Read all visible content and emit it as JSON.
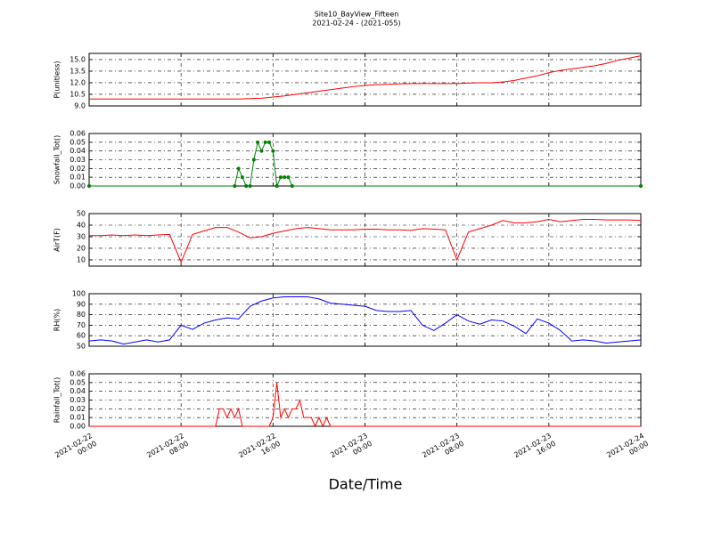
{
  "figure": {
    "title": "Site10_BayView_Fifteen",
    "subtitle": "2021-02-24 - (2021-055)",
    "xlabel": "Date/Time"
  },
  "chart_data": [
    {
      "type": "line",
      "ylabel": "P(unitless)",
      "color": "#ff0000",
      "grid": true,
      "xlim": [
        "2021-02-22 00:00",
        "2021-02-24 00:00"
      ],
      "ylim": [
        9,
        15.8
      ],
      "yticks": [
        {
          "value": 9,
          "label": "9.0"
        },
        10.5,
        {
          "value": 12,
          "label": "12.0"
        },
        13.5,
        {
          "value": 15,
          "label": "15.0"
        }
      ],
      "x": [
        "2021-02-22 00:00",
        "2021-02-22 01:00",
        "2021-02-22 02:00",
        "2021-02-22 03:00",
        "2021-02-22 04:00",
        "2021-02-22 05:00",
        "2021-02-22 06:00",
        "2021-02-22 07:00",
        "2021-02-22 08:00",
        "2021-02-22 09:00",
        "2021-02-22 10:00",
        "2021-02-22 11:00",
        "2021-02-22 12:00",
        "2021-02-22 13:00",
        "2021-02-22 14:00",
        "2021-02-22 15:00",
        "2021-02-22 16:00",
        "2021-02-22 17:00",
        "2021-02-22 18:00",
        "2021-02-22 19:00",
        "2021-02-22 20:00",
        "2021-02-22 21:00",
        "2021-02-22 22:00",
        "2021-02-22 23:00",
        "2021-02-23 00:00",
        "2021-02-23 01:00",
        "2021-02-23 02:00",
        "2021-02-23 03:00",
        "2021-02-23 04:00",
        "2021-02-23 05:00",
        "2021-02-23 06:00",
        "2021-02-23 07:00",
        "2021-02-23 08:00",
        "2021-02-23 09:00",
        "2021-02-23 10:00",
        "2021-02-23 11:00",
        "2021-02-23 12:00",
        "2021-02-23 13:00",
        "2021-02-23 14:00",
        "2021-02-23 15:00",
        "2021-02-23 16:00",
        "2021-02-23 17:00",
        "2021-02-23 18:00",
        "2021-02-23 19:00",
        "2021-02-23 20:00",
        "2021-02-23 21:00",
        "2021-02-23 22:00",
        "2021-02-23 23:00",
        "2021-02-24 00:00"
      ],
      "values": [
        9.9,
        9.9,
        9.9,
        9.9,
        9.9,
        9.9,
        9.9,
        9.9,
        9.9,
        9.9,
        9.9,
        9.9,
        9.9,
        9.9,
        9.95,
        10.0,
        10.15,
        10.3,
        10.5,
        10.7,
        10.9,
        11.1,
        11.3,
        11.5,
        11.65,
        11.75,
        11.8,
        11.85,
        11.9,
        11.9,
        11.9,
        11.9,
        11.9,
        11.95,
        12.0,
        12.0,
        12.1,
        12.3,
        12.6,
        12.9,
        13.3,
        13.6,
        13.8,
        14.0,
        14.2,
        14.5,
        14.9,
        15.2,
        15.5
      ]
    },
    {
      "type": "line",
      "ylabel": "Snowfall_Tot()",
      "color": "#008000",
      "marker": "o",
      "grid": true,
      "xlim": [
        "2021-02-22 00:00",
        "2021-02-24 00:00"
      ],
      "ylim": [
        0,
        0.06
      ],
      "yticks": [
        {
          "value": 0,
          "label": "0.00"
        },
        0.01,
        0.02,
        0.03,
        0.04,
        0.05,
        0.06
      ],
      "x": [
        "2021-02-22 00:00",
        "2021-02-22 12:40",
        "2021-02-22 13:00",
        "2021-02-22 13:20",
        "2021-02-22 13:40",
        "2021-02-22 14:00",
        "2021-02-22 14:20",
        "2021-02-22 14:40",
        "2021-02-22 15:00",
        "2021-02-22 15:20",
        "2021-02-22 15:40",
        "2021-02-22 16:00",
        "2021-02-22 16:20",
        "2021-02-22 16:40",
        "2021-02-22 17:00",
        "2021-02-22 17:20",
        "2021-02-22 17:40",
        "2021-02-24 00:00"
      ],
      "values": [
        0,
        0,
        0.02,
        0.01,
        0,
        0,
        0.03,
        0.05,
        0.04,
        0.05,
        0.05,
        0.04,
        0,
        0.01,
        0.01,
        0.01,
        0,
        0
      ]
    },
    {
      "type": "line",
      "ylabel": "AirT(F)",
      "color": "#ff0000",
      "grid": true,
      "xlim": [
        "2021-02-22 00:00",
        "2021-02-24 00:00"
      ],
      "ylim": [
        4.6,
        50
      ],
      "yticks": [
        10,
        20,
        30,
        40,
        50
      ],
      "x": [
        "2021-02-22 00:00",
        "2021-02-22 01:00",
        "2021-02-22 02:00",
        "2021-02-22 03:00",
        "2021-02-22 04:00",
        "2021-02-22 05:00",
        "2021-02-22 06:00",
        "2021-02-22 07:00",
        "2021-02-22 08:00",
        "2021-02-22 09:00",
        "2021-02-22 10:00",
        "2021-02-22 11:00",
        "2021-02-22 12:00",
        "2021-02-22 13:00",
        "2021-02-22 14:00",
        "2021-02-22 15:00",
        "2021-02-22 16:00",
        "2021-02-22 17:00",
        "2021-02-22 18:00",
        "2021-02-22 19:00",
        "2021-02-22 20:00",
        "2021-02-22 21:00",
        "2021-02-22 22:00",
        "2021-02-22 23:00",
        "2021-02-23 00:00",
        "2021-02-23 01:00",
        "2021-02-23 02:00",
        "2021-02-23 03:00",
        "2021-02-23 04:00",
        "2021-02-23 05:00",
        "2021-02-23 06:00",
        "2021-02-23 07:00",
        "2021-02-23 08:00",
        "2021-02-23 09:00",
        "2021-02-23 10:00",
        "2021-02-23 11:00",
        "2021-02-23 12:00",
        "2021-02-23 13:00",
        "2021-02-23 14:00",
        "2021-02-23 15:00",
        "2021-02-23 16:00",
        "2021-02-23 17:00",
        "2021-02-23 18:00",
        "2021-02-23 19:00",
        "2021-02-23 20:00",
        "2021-02-23 21:00",
        "2021-02-23 22:00",
        "2021-02-23 23:00",
        "2021-02-24 00:00"
      ],
      "values": [
        31,
        31,
        31.5,
        31,
        31.5,
        31,
        31.5,
        32,
        8,
        32,
        35,
        38,
        38,
        34,
        29,
        30,
        33,
        35,
        37,
        38,
        37,
        36,
        36,
        36,
        36.5,
        36.5,
        36,
        36,
        35.5,
        37,
        36.5,
        36,
        10,
        34,
        37,
        40,
        44,
        42,
        42,
        43,
        45,
        43,
        44,
        45,
        45,
        44.5,
        44.5,
        44.5,
        44
      ]
    },
    {
      "type": "line",
      "ylabel": "RH(%)",
      "color": "#0000ff",
      "grid": true,
      "xlim": [
        "2021-02-22 00:00",
        "2021-02-24 00:00"
      ],
      "ylim": [
        50,
        100
      ],
      "yticks": [
        50,
        60,
        70,
        80,
        90,
        100
      ],
      "x": [
        "2021-02-22 00:00",
        "2021-02-22 01:00",
        "2021-02-22 02:00",
        "2021-02-22 03:00",
        "2021-02-22 04:00",
        "2021-02-22 05:00",
        "2021-02-22 06:00",
        "2021-02-22 07:00",
        "2021-02-22 08:00",
        "2021-02-22 09:00",
        "2021-02-22 10:00",
        "2021-02-22 11:00",
        "2021-02-22 12:00",
        "2021-02-22 13:00",
        "2021-02-22 14:00",
        "2021-02-22 15:00",
        "2021-02-22 16:00",
        "2021-02-22 17:00",
        "2021-02-22 18:00",
        "2021-02-22 19:00",
        "2021-02-22 20:00",
        "2021-02-22 21:00",
        "2021-02-22 22:00",
        "2021-02-22 23:00",
        "2021-02-23 00:00",
        "2021-02-23 01:00",
        "2021-02-23 02:00",
        "2021-02-23 03:00",
        "2021-02-23 04:00",
        "2021-02-23 05:00",
        "2021-02-23 06:00",
        "2021-02-23 07:00",
        "2021-02-23 08:00",
        "2021-02-23 09:00",
        "2021-02-23 10:00",
        "2021-02-23 11:00",
        "2021-02-23 12:00",
        "2021-02-23 13:00",
        "2021-02-23 14:00",
        "2021-02-23 15:00",
        "2021-02-23 16:00",
        "2021-02-23 17:00",
        "2021-02-23 18:00",
        "2021-02-23 19:00",
        "2021-02-23 20:00",
        "2021-02-23 21:00",
        "2021-02-23 22:00",
        "2021-02-23 23:00",
        "2021-02-24 00:00"
      ],
      "values": [
        55,
        56,
        55,
        52,
        54,
        56,
        54,
        56,
        70,
        66,
        72,
        75,
        77,
        76,
        88,
        93,
        96,
        97,
        97,
        97,
        95,
        91,
        90,
        89,
        88,
        84,
        83,
        83,
        84,
        70,
        65,
        72,
        80,
        74,
        71,
        75,
        74,
        69,
        62,
        76,
        72,
        65,
        55,
        56,
        55,
        53,
        54,
        55,
        56
      ]
    },
    {
      "type": "line",
      "ylabel": "Rainfall_Tot()",
      "color": "#ff0000",
      "grid": true,
      "xlim": [
        "2021-02-22 00:00",
        "2021-02-24 00:00"
      ],
      "ylim": [
        0,
        0.06
      ],
      "yticks": [
        {
          "value": 0,
          "label": "0.00"
        },
        0.01,
        0.02,
        0.03,
        0.04,
        0.05,
        0.06
      ],
      "xticks": [
        {
          "value": "2021-02-22 00:00",
          "label": "2021-02-22\n00:00"
        },
        {
          "value": "2021-02-22 08:00",
          "label": "2021-02-22\n08:00"
        },
        {
          "value": "2021-02-22 16:00",
          "label": "2021-02-22\n16:00"
        },
        {
          "value": "2021-02-23 00:00",
          "label": "2021-02-23\n00:00"
        },
        {
          "value": "2021-02-23 08:00",
          "label": "2021-02-23\n08:00"
        },
        {
          "value": "2021-02-23 16:00",
          "label": "2021-02-23\n16:00"
        },
        {
          "value": "2021-02-24 00:00",
          "label": "2021-02-24\n00:00"
        }
      ],
      "x": [
        "2021-02-22 00:00",
        "2021-02-22 11:00",
        "2021-02-22 11:20",
        "2021-02-22 11:40",
        "2021-02-22 12:00",
        "2021-02-22 12:20",
        "2021-02-22 12:40",
        "2021-02-22 13:00",
        "2021-02-22 13:20",
        "2021-02-22 15:40",
        "2021-02-22 16:00",
        "2021-02-22 16:20",
        "2021-02-22 16:40",
        "2021-02-22 17:00",
        "2021-02-22 17:20",
        "2021-02-22 17:40",
        "2021-02-22 18:00",
        "2021-02-22 18:20",
        "2021-02-22 18:40",
        "2021-02-22 19:00",
        "2021-02-22 19:20",
        "2021-02-22 19:40",
        "2021-02-22 20:00",
        "2021-02-22 20:20",
        "2021-02-22 20:40",
        "2021-02-22 21:00",
        "2021-02-24 00:00"
      ],
      "values": [
        0,
        0,
        0.02,
        0.02,
        0.01,
        0.02,
        0.01,
        0.02,
        0,
        0,
        0.01,
        0.05,
        0.01,
        0.02,
        0.01,
        0.02,
        0.02,
        0.03,
        0.01,
        0.01,
        0.01,
        0,
        0.01,
        0,
        0.01,
        0,
        0
      ]
    }
  ]
}
